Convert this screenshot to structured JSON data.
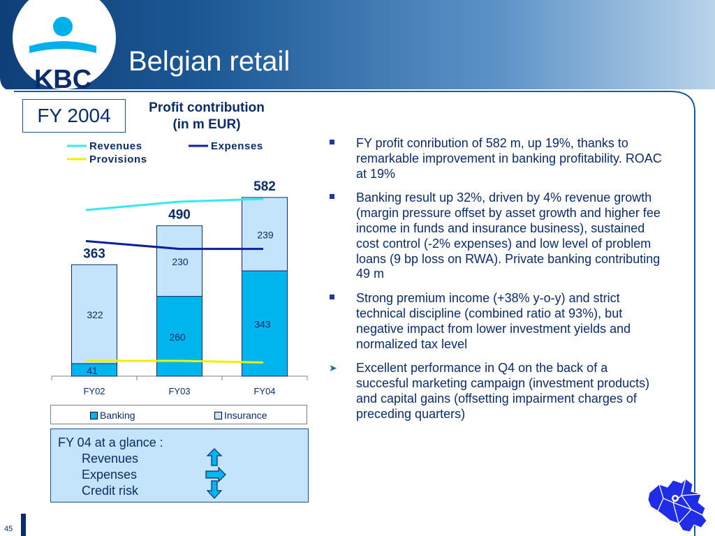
{
  "slide": {
    "title": "Belgian retail",
    "logo_text": "KBC",
    "period_label": "FY 2004",
    "page_number": "45"
  },
  "chart_data": {
    "type": "bar",
    "title": "Profit contribution\n(in m EUR)",
    "categories": [
      "FY02",
      "FY03",
      "FY04"
    ],
    "stacked": true,
    "series": [
      {
        "name": "Banking",
        "values": [
          41,
          260,
          343
        ],
        "color": "#00b4ee"
      },
      {
        "name": "Insurance",
        "values": [
          322,
          230,
          239
        ],
        "color": "#c4e4fb"
      }
    ],
    "totals": [
      363,
      490,
      582
    ],
    "lines": [
      {
        "name": "Revenues",
        "color": "#33eaf0",
        "trend": [
          0.92,
          0.98,
          1.0
        ]
      },
      {
        "name": "Expenses",
        "color": "#0a1fa0",
        "trend": [
          0.97,
          0.93,
          0.93
        ]
      },
      {
        "name": "Provisions",
        "color": "#f0f000",
        "trend": [
          1.0,
          1.0,
          0.96
        ]
      }
    ],
    "line_legend_position": "top",
    "bar_legend_position": "bottom"
  },
  "bullets": [
    {
      "marker": "square",
      "text": "FY profit conribution of 582 m, up 19%, thanks to remarkable improvement in banking profitability. ROAC at 19%"
    },
    {
      "marker": "square",
      "text": "Banking result up 32%, driven by 4% revenue growth (margin pressure offset by asset growth and higher fee income in funds and insurance business), sustained cost control (-2% expenses) and low level of problem loans (9 bp loss on RWA). Private banking contributing 49 m"
    },
    {
      "marker": "square",
      "text": "Strong premium income (+38% y-o-y) and strict technical discipline (combined ratio at 93%), but negative impact from lower investment yields and normalized tax level"
    },
    {
      "marker": "arrow",
      "text": "Excellent performance in Q4 on the back of a succesful marketing campaign (investment products) and capital gains (offsetting impairment charges of preceding quarters)"
    }
  ],
  "glance": {
    "heading": "FY 04 at a glance :",
    "items": [
      {
        "label": "Revenues",
        "indicator": "up"
      },
      {
        "label": "Expenses",
        "indicator": "right"
      },
      {
        "label": "Credit risk",
        "indicator": "down"
      }
    ]
  },
  "colors": {
    "navy": "#0a2d6a",
    "arrow_fill": "#00b4ee",
    "map_blue": "#1f2ee6"
  }
}
